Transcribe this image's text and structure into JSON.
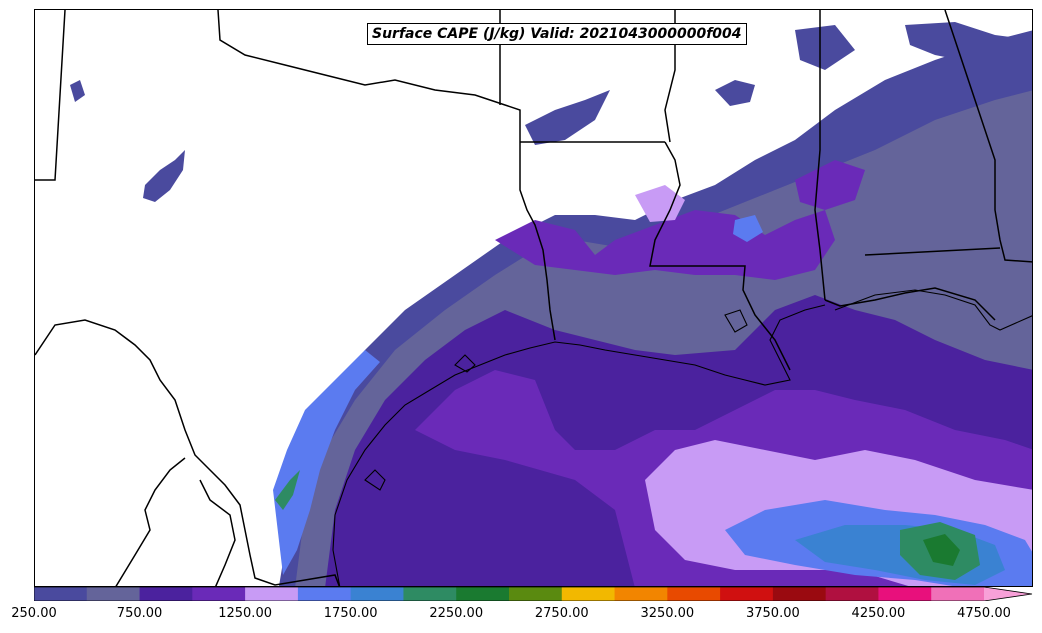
{
  "title": "Surface CAPE (J/kg) Valid: 2021043000000f004",
  "colorbar": {
    "colors": [
      "#4a4a9e",
      "#64649a",
      "#4b229e",
      "#6a2ab8",
      "#c89bf5",
      "#5b7bf0",
      "#3a82d2",
      "#2e8b63",
      "#1a7a30",
      "#5a8a10",
      "#f2b800",
      "#f28500",
      "#e84a00",
      "#d01010",
      "#9a0a10",
      "#b01040",
      "#e8107c",
      "#f070b8",
      "#f8a0d8"
    ],
    "tick_labels": [
      "250.00",
      "750.00",
      "1250.00",
      "1750.00",
      "2250.00",
      "2750.00",
      "3250.00",
      "3750.00",
      "4250.00",
      "4750.00"
    ]
  },
  "chart_data": {
    "type": "heatmap",
    "title": "Surface CAPE (J/kg) Valid: 2021043000000f004",
    "units": "J/kg",
    "levels": [
      250,
      500,
      750,
      1000,
      1250,
      1500,
      1750,
      2000,
      2250,
      2500,
      2750,
      3000,
      3250,
      3500,
      3750,
      4000,
      4250,
      4500,
      4750
    ],
    "colorbar_extend": "max",
    "colorbar_position": "bottom"
  }
}
